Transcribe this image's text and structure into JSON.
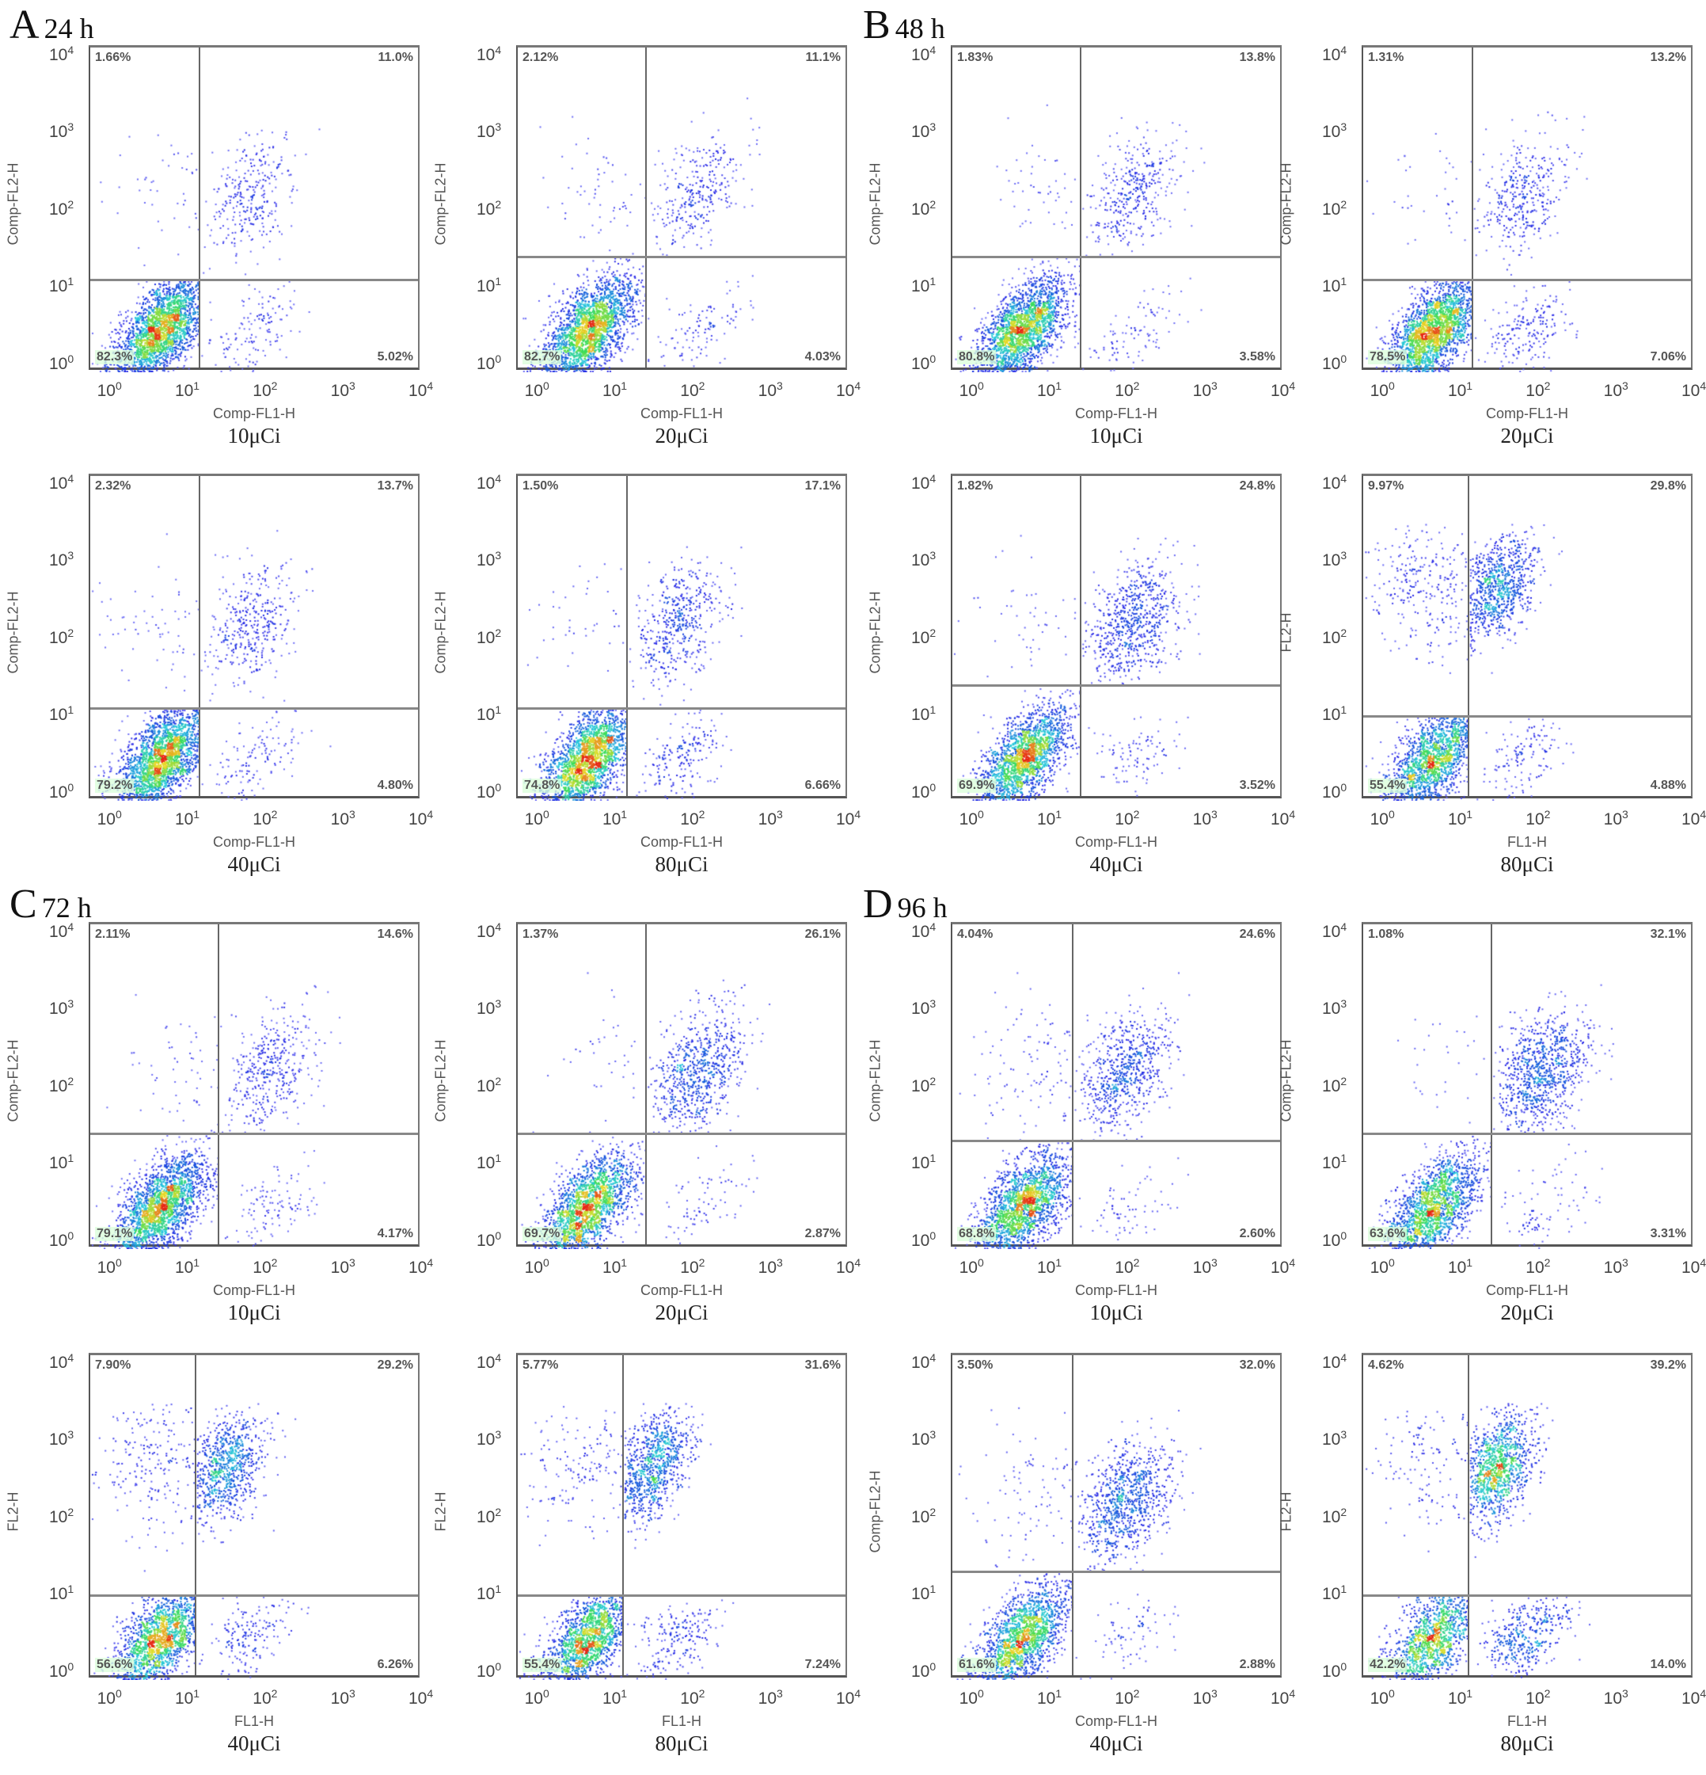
{
  "sections": [
    {
      "letter": "A",
      "time": "24 h"
    },
    {
      "letter": "B",
      "time": "48 h"
    },
    {
      "letter": "C",
      "time": "72 h"
    },
    {
      "letter": "D",
      "time": "96 h"
    }
  ],
  "chart_data": [
    {
      "type": "scatter",
      "section": "A",
      "dose": "10μCi",
      "xlabel": "Comp-FL1-H",
      "ylabel": "Comp-FL2-H",
      "axis_scale": "log10",
      "xlim_exp": [
        -0.25,
        4
      ],
      "ylim_exp": [
        0,
        4.2
      ],
      "tick_exponents": [
        0,
        1,
        2,
        3,
        4
      ],
      "gate_exp": {
        "x": 1.15,
        "y": 1.2
      },
      "quadrants": {
        "UL": "1.66%",
        "UR": "11.0%",
        "LL": "82.3%",
        "LR": "5.02%"
      }
    },
    {
      "type": "scatter",
      "section": "A",
      "dose": "20μCi",
      "xlabel": "Comp-FL1-H",
      "ylabel": "Comp-FL2-H",
      "axis_scale": "log10",
      "xlim_exp": [
        -0.25,
        4
      ],
      "ylim_exp": [
        0,
        4.2
      ],
      "tick_exponents": [
        0,
        1,
        2,
        3,
        4
      ],
      "gate_exp": {
        "x": 1.4,
        "y": 1.5
      },
      "quadrants": {
        "UL": "2.12%",
        "UR": "11.1%",
        "LL": "82.7%",
        "LR": "4.03%"
      }
    },
    {
      "type": "scatter",
      "section": "B",
      "dose": "10μCi",
      "xlabel": "Comp-FL1-H",
      "ylabel": "Comp-FL2-H",
      "axis_scale": "log10",
      "xlim_exp": [
        -0.25,
        4
      ],
      "ylim_exp": [
        0,
        4.2
      ],
      "tick_exponents": [
        0,
        1,
        2,
        3,
        4
      ],
      "gate_exp": {
        "x": 1.4,
        "y": 1.5
      },
      "quadrants": {
        "UL": "1.83%",
        "UR": "13.8%",
        "LL": "80.8%",
        "LR": "3.58%"
      }
    },
    {
      "type": "scatter",
      "section": "B",
      "dose": "20μCi",
      "xlabel": "Comp-FL1-H",
      "ylabel": "Comp-FL2-H",
      "axis_scale": "log10",
      "xlim_exp": [
        -0.25,
        4
      ],
      "ylim_exp": [
        0,
        4.2
      ],
      "tick_exponents": [
        0,
        1,
        2,
        3,
        4
      ],
      "gate_exp": {
        "x": 1.15,
        "y": 1.2
      },
      "quadrants": {
        "UL": "1.31%",
        "UR": "13.2%",
        "LL": "78.5%",
        "LR": "7.06%"
      }
    },
    {
      "type": "scatter",
      "section": "A",
      "dose": "40μCi",
      "xlabel": "Comp-FL1-H",
      "ylabel": "Comp-FL2-H",
      "axis_scale": "log10",
      "xlim_exp": [
        -0.25,
        4
      ],
      "ylim_exp": [
        0,
        4.2
      ],
      "tick_exponents": [
        0,
        1,
        2,
        3,
        4
      ],
      "gate_exp": {
        "x": 1.15,
        "y": 1.2
      },
      "quadrants": {
        "UL": "2.32%",
        "UR": "13.7%",
        "LL": "79.2%",
        "LR": "4.80%"
      }
    },
    {
      "type": "scatter",
      "section": "A",
      "dose": "80μCi",
      "xlabel": "Comp-FL1-H",
      "ylabel": "Comp-FL2-H",
      "axis_scale": "log10",
      "xlim_exp": [
        -0.25,
        4
      ],
      "ylim_exp": [
        0,
        4.2
      ],
      "tick_exponents": [
        0,
        1,
        2,
        3,
        4
      ],
      "gate_exp": {
        "x": 1.15,
        "y": 1.2
      },
      "quadrants": {
        "UL": "1.50%",
        "UR": "17.1%",
        "LL": "74.8%",
        "LR": "6.66%"
      }
    },
    {
      "type": "scatter",
      "section": "B",
      "dose": "40μCi",
      "xlabel": "Comp-FL1-H",
      "ylabel": "Comp-FL2-H",
      "axis_scale": "log10",
      "xlim_exp": [
        -0.25,
        4
      ],
      "ylim_exp": [
        0,
        4.2
      ],
      "tick_exponents": [
        0,
        1,
        2,
        3,
        4
      ],
      "gate_exp": {
        "x": 1.4,
        "y": 1.5
      },
      "quadrants": {
        "UL": "1.82%",
        "UR": "24.8%",
        "LL": "69.9%",
        "LR": "3.52%"
      }
    },
    {
      "type": "scatter",
      "section": "B",
      "dose": "80μCi",
      "xlabel": "FL1-H",
      "ylabel": "FL2-H",
      "axis_scale": "log10",
      "xlim_exp": [
        -0.25,
        4
      ],
      "ylim_exp": [
        0,
        4.2
      ],
      "tick_exponents": [
        0,
        1,
        2,
        3,
        4
      ],
      "gate_exp": {
        "x": 1.1,
        "y": 1.1
      },
      "quadrants": {
        "UL": "9.97%",
        "UR": "29.8%",
        "LL": "55.4%",
        "LR": "4.88%"
      }
    },
    {
      "type": "scatter",
      "section": "C",
      "dose": "10μCi",
      "xlabel": "Comp-FL1-H",
      "ylabel": "Comp-FL2-H",
      "axis_scale": "log10",
      "xlim_exp": [
        -0.25,
        4
      ],
      "ylim_exp": [
        0,
        4.2
      ],
      "tick_exponents": [
        0,
        1,
        2,
        3,
        4
      ],
      "gate_exp": {
        "x": 1.4,
        "y": 1.5
      },
      "quadrants": {
        "UL": "2.11%",
        "UR": "14.6%",
        "LL": "79.1%",
        "LR": "4.17%"
      }
    },
    {
      "type": "scatter",
      "section": "C",
      "dose": "20μCi",
      "xlabel": "Comp-FL1-H",
      "ylabel": "Comp-FL2-H",
      "axis_scale": "log10",
      "xlim_exp": [
        -0.25,
        4
      ],
      "ylim_exp": [
        0,
        4.2
      ],
      "tick_exponents": [
        0,
        1,
        2,
        3,
        4
      ],
      "gate_exp": {
        "x": 1.4,
        "y": 1.5
      },
      "quadrants": {
        "UL": "1.37%",
        "UR": "26.1%",
        "LL": "69.7%",
        "LR": "2.87%"
      }
    },
    {
      "type": "scatter",
      "section": "D",
      "dose": "10μCi",
      "xlabel": "Comp-FL1-H",
      "ylabel": "Comp-FL2-H",
      "axis_scale": "log10",
      "xlim_exp": [
        -0.25,
        4
      ],
      "ylim_exp": [
        0,
        4.2
      ],
      "tick_exponents": [
        0,
        1,
        2,
        3,
        4
      ],
      "gate_exp": {
        "x": 1.3,
        "y": 1.4
      },
      "quadrants": {
        "UL": "4.04%",
        "UR": "24.6%",
        "LL": "68.8%",
        "LR": "2.60%"
      }
    },
    {
      "type": "scatter",
      "section": "D",
      "dose": "20μCi",
      "xlabel": "Comp-FL1-H",
      "ylabel": "Comp-FL2-H",
      "axis_scale": "log10",
      "xlim_exp": [
        -0.25,
        4
      ],
      "ylim_exp": [
        0,
        4.2
      ],
      "tick_exponents": [
        0,
        1,
        2,
        3,
        4
      ],
      "gate_exp": {
        "x": 1.4,
        "y": 1.5
      },
      "quadrants": {
        "UL": "1.08%",
        "UR": "32.1%",
        "LL": "63.6%",
        "LR": "3.31%"
      }
    },
    {
      "type": "scatter",
      "section": "C",
      "dose": "40μCi",
      "xlabel": "FL1-H",
      "ylabel": "FL2-H",
      "axis_scale": "log10",
      "xlim_exp": [
        -0.25,
        4
      ],
      "ylim_exp": [
        0,
        4.2
      ],
      "tick_exponents": [
        0,
        1,
        2,
        3,
        4
      ],
      "gate_exp": {
        "x": 1.1,
        "y": 1.1
      },
      "quadrants": {
        "UL": "7.90%",
        "UR": "29.2%",
        "LL": "56.6%",
        "LR": "6.26%"
      }
    },
    {
      "type": "scatter",
      "section": "C",
      "dose": "80μCi",
      "xlabel": "FL1-H",
      "ylabel": "FL2-H",
      "axis_scale": "log10",
      "xlim_exp": [
        -0.25,
        4
      ],
      "ylim_exp": [
        0,
        4.2
      ],
      "tick_exponents": [
        0,
        1,
        2,
        3,
        4
      ],
      "gate_exp": {
        "x": 1.1,
        "y": 1.1
      },
      "quadrants": {
        "UL": "5.77%",
        "UR": "31.6%",
        "LL": "55.4%",
        "LR": "7.24%"
      }
    },
    {
      "type": "scatter",
      "section": "D",
      "dose": "40μCi",
      "xlabel": "Comp-FL1-H",
      "ylabel": "Comp-FL2-H",
      "axis_scale": "log10",
      "xlim_exp": [
        -0.25,
        4
      ],
      "ylim_exp": [
        0,
        4.2
      ],
      "tick_exponents": [
        0,
        1,
        2,
        3,
        4
      ],
      "gate_exp": {
        "x": 1.3,
        "y": 1.4
      },
      "quadrants": {
        "UL": "3.50%",
        "UR": "32.0%",
        "LL": "61.6%",
        "LR": "2.88%"
      }
    },
    {
      "type": "scatter",
      "section": "D",
      "dose": "80μCi",
      "xlabel": "FL1-H",
      "ylabel": "FL2-H",
      "axis_scale": "log10",
      "xlim_exp": [
        -0.25,
        4
      ],
      "ylim_exp": [
        0,
        4.2
      ],
      "tick_exponents": [
        0,
        1,
        2,
        3,
        4
      ],
      "gate_exp": {
        "x": 1.1,
        "y": 1.1
      },
      "quadrants": {
        "UL": "4.62%",
        "UR": "39.2%",
        "LL": "42.2%",
        "LR": "14.0%"
      }
    }
  ]
}
